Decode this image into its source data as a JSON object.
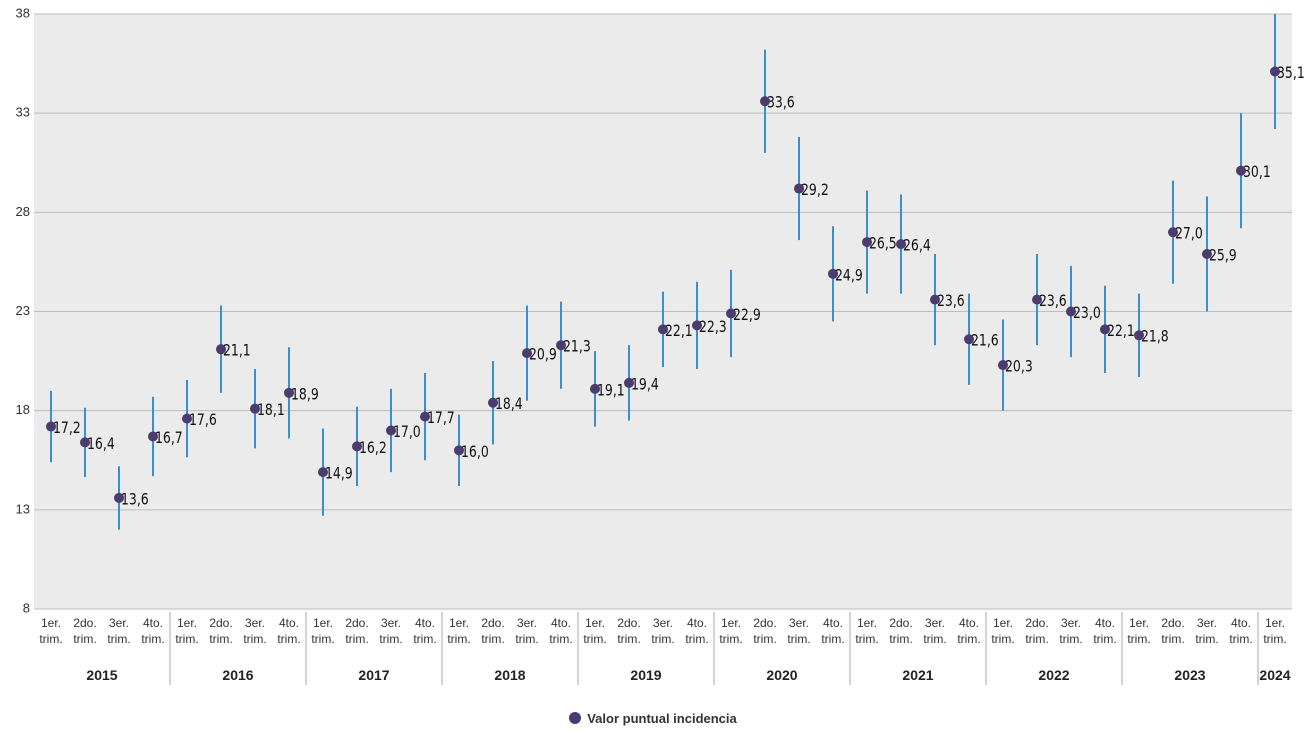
{
  "chart_data": {
    "type": "errorbar",
    "categories": [
      "1er. trim.",
      "2do. trim.",
      "3er. trim.",
      "4to. trim.",
      "1er. trim.",
      "2do. trim.",
      "3er. trim.",
      "4to. trim.",
      "1er. trim.",
      "2do. trim.",
      "3er. trim.",
      "4to. trim.",
      "1er. trim.",
      "2do. trim.",
      "3er. trim.",
      "4to. trim.",
      "1er. trim.",
      "2do. trim.",
      "3er. trim.",
      "4to. trim.",
      "1er. trim.",
      "2do. trim.",
      "3er. trim.",
      "4to. trim.",
      "1er. trim.",
      "2do. trim.",
      "3er. trim.",
      "4to. trim.",
      "1er. trim.",
      "2do. trim.",
      "3er. trim.",
      "4to. trim.",
      "1er. trim.",
      "2do. trim.",
      "3er. trim.",
      "4to. trim.",
      "1er. trim."
    ],
    "x_groups": [
      {
        "label": "2015",
        "size": 4
      },
      {
        "label": "2016",
        "size": 4
      },
      {
        "label": "2017",
        "size": 4
      },
      {
        "label": "2018",
        "size": 4
      },
      {
        "label": "2019",
        "size": 4
      },
      {
        "label": "2020",
        "size": 4
      },
      {
        "label": "2021",
        "size": 4
      },
      {
        "label": "2022",
        "size": 4
      },
      {
        "label": "2023",
        "size": 4
      },
      {
        "label": "2024",
        "size": 1
      }
    ],
    "series": [
      {
        "name": "Valor puntual incidencia",
        "color": "#4b3b6e",
        "error_color": "#3a8fd0",
        "values": [
          17.2,
          16.4,
          13.6,
          16.7,
          17.6,
          21.1,
          18.1,
          18.9,
          14.9,
          16.2,
          17.0,
          17.7,
          16.0,
          18.4,
          20.9,
          21.3,
          19.1,
          19.4,
          22.1,
          22.3,
          22.9,
          33.6,
          29.2,
          24.9,
          26.5,
          26.4,
          23.6,
          21.6,
          20.3,
          23.6,
          23.0,
          22.1,
          21.8,
          27.0,
          25.9,
          30.1,
          35.1
        ],
        "value_labels": [
          "17,2",
          "16,4",
          "13,6",
          "16,7",
          "17,6",
          "21,1",
          "18,1",
          "18,9",
          "14,9",
          "16,2",
          "17,0",
          "17,7",
          "16,0",
          "18,4",
          "20,9",
          "21,3",
          "19,1",
          "19,4",
          "22,1",
          "22,3",
          "22,9",
          "33,6",
          "29,2",
          "24,9",
          "26,5",
          "26,4",
          "23,6",
          "21,6",
          "20,3",
          "23,6",
          "23,0",
          "22,1",
          "21,8",
          "27,0",
          "25,9",
          "30,1",
          "35,1"
        ],
        "errors": [
          1.8,
          1.75,
          1.6,
          2.0,
          1.95,
          2.2,
          2.0,
          2.3,
          2.2,
          2.0,
          2.1,
          2.2,
          1.8,
          2.1,
          2.4,
          2.2,
          1.9,
          1.9,
          1.9,
          2.2,
          2.2,
          2.6,
          2.6,
          2.4,
          2.6,
          2.5,
          2.3,
          2.3,
          2.3,
          2.3,
          2.3,
          2.2,
          2.1,
          2.6,
          2.9,
          2.9,
          2.9
        ]
      }
    ],
    "ylim": [
      8,
      38
    ],
    "yticks": [
      8,
      13,
      18,
      23,
      28,
      33,
      38
    ],
    "grid": true,
    "legend": "bottom"
  }
}
